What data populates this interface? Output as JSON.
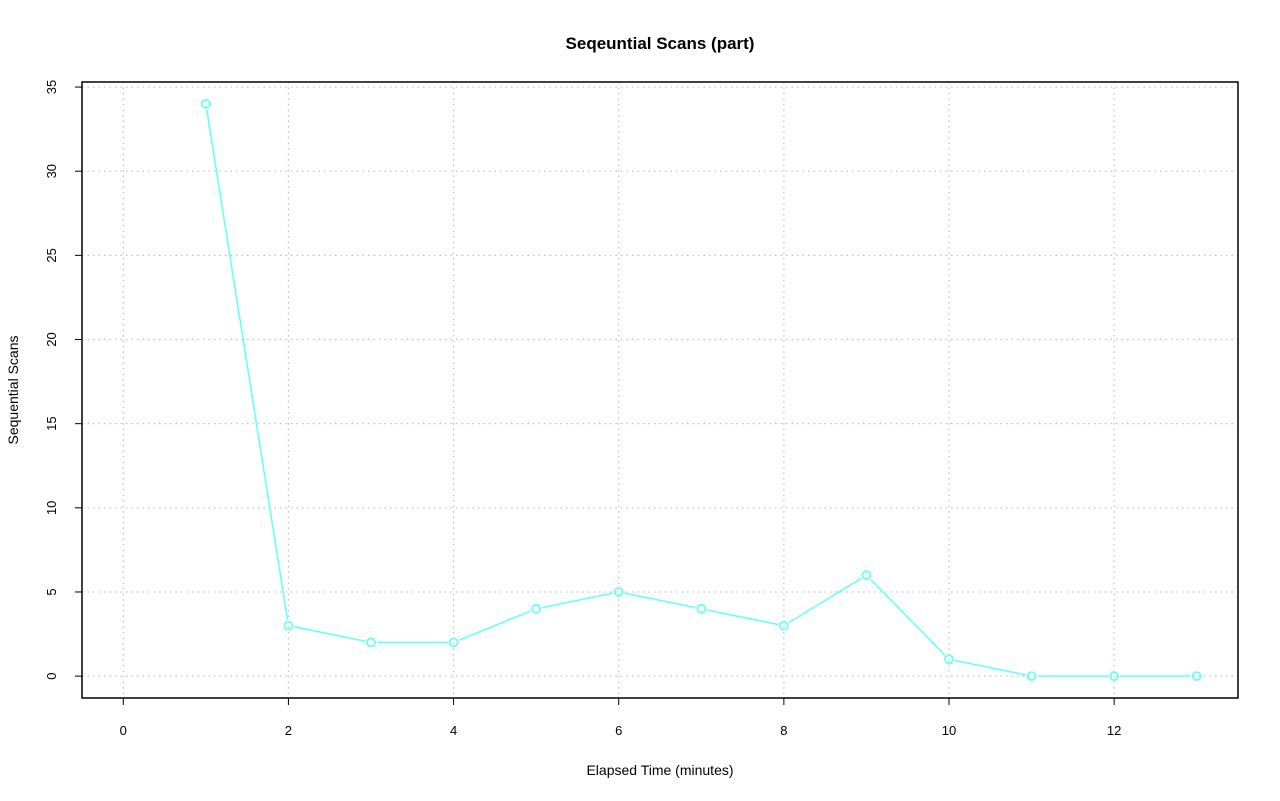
{
  "chart_data": {
    "type": "line",
    "title": "Seqeuntial Scans (part)",
    "xlabel": "Elapsed Time (minutes)",
    "ylabel": "Sequential Scans",
    "xlim": [
      -0.5,
      13.5
    ],
    "ylim": [
      -1.3,
      35.3
    ],
    "x_ticks": [
      0,
      2,
      4,
      6,
      8,
      10,
      12
    ],
    "y_ticks": [
      0,
      5,
      10,
      15,
      20,
      25,
      30,
      35
    ],
    "grid": true,
    "series": [
      {
        "color": "#66ffff",
        "marker": "open-circle",
        "x": [
          1,
          2,
          3,
          4,
          5,
          6,
          7,
          8,
          9,
          10,
          11,
          12,
          13
        ],
        "y": [
          34,
          3,
          2,
          2,
          4,
          5,
          4,
          3,
          6,
          1,
          0,
          0,
          0
        ]
      }
    ]
  }
}
